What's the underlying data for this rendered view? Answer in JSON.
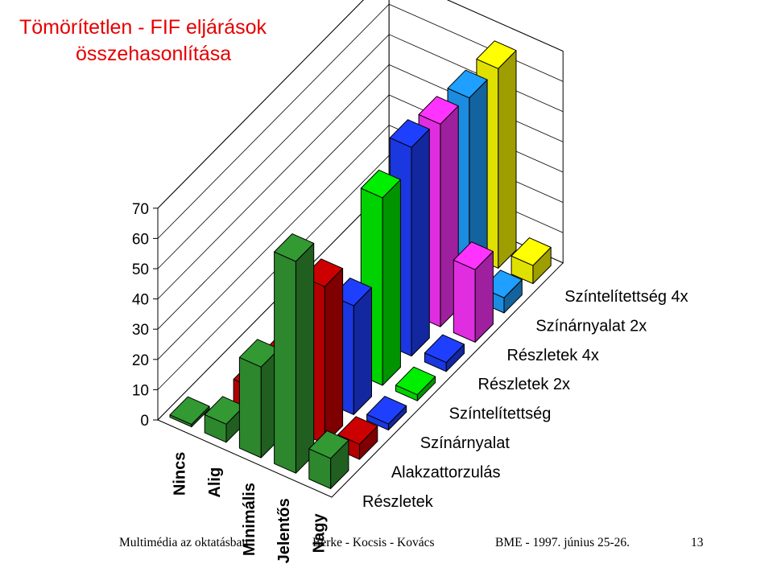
{
  "title": {
    "line1": "Tömörítetlen - FIF eljárások",
    "line2": "összehasonlítása"
  },
  "chart_data": {
    "type": "bar",
    "style": "3d-clustered",
    "ylim": [
      0,
      70
    ],
    "yticks": [
      "0",
      "10",
      "20",
      "30",
      "40",
      "50",
      "60",
      "70"
    ],
    "categories": [
      "Nincs",
      "Alig",
      "Minimális",
      "Jelentős",
      "Nagy"
    ],
    "series": [
      {
        "name": "Részletek",
        "color": "#339933",
        "values": [
          0,
          6,
          30,
          70,
          10
        ]
      },
      {
        "name": "Alakzattorzulás",
        "color": "#cc0000",
        "values": [
          0,
          8,
          24,
          52,
          5
        ]
      },
      {
        "name": "Színárnyalat",
        "color": "#1f3fff",
        "values": [
          0,
          0,
          28,
          36,
          2
        ]
      },
      {
        "name": "Színtelítettség",
        "color": "#00ee00",
        "values": [
          0,
          0,
          0,
          62,
          2
        ]
      },
      {
        "name": "Részletek 2x",
        "color": "#1f3fff",
        "values": [
          0,
          0,
          0,
          69,
          3
        ]
      },
      {
        "name": "Részletek 4x",
        "color": "#ff33ff",
        "values": [
          0,
          0,
          0,
          67,
          24
        ]
      },
      {
        "name": "Színárnyalat 2x",
        "color": "#1f9fff",
        "values": [
          0,
          0,
          0,
          66,
          5
        ]
      },
      {
        "name": "Színtelítettség 4x",
        "color": "#ffff00",
        "values": [
          0,
          0,
          0,
          66,
          6
        ]
      }
    ],
    "grid": true
  },
  "footer": {
    "left": "Multimédia az oktatásban",
    "center": "Berke - Kocsis - Kovács",
    "right": "BME - 1997. június 25-26.",
    "page": "13"
  }
}
